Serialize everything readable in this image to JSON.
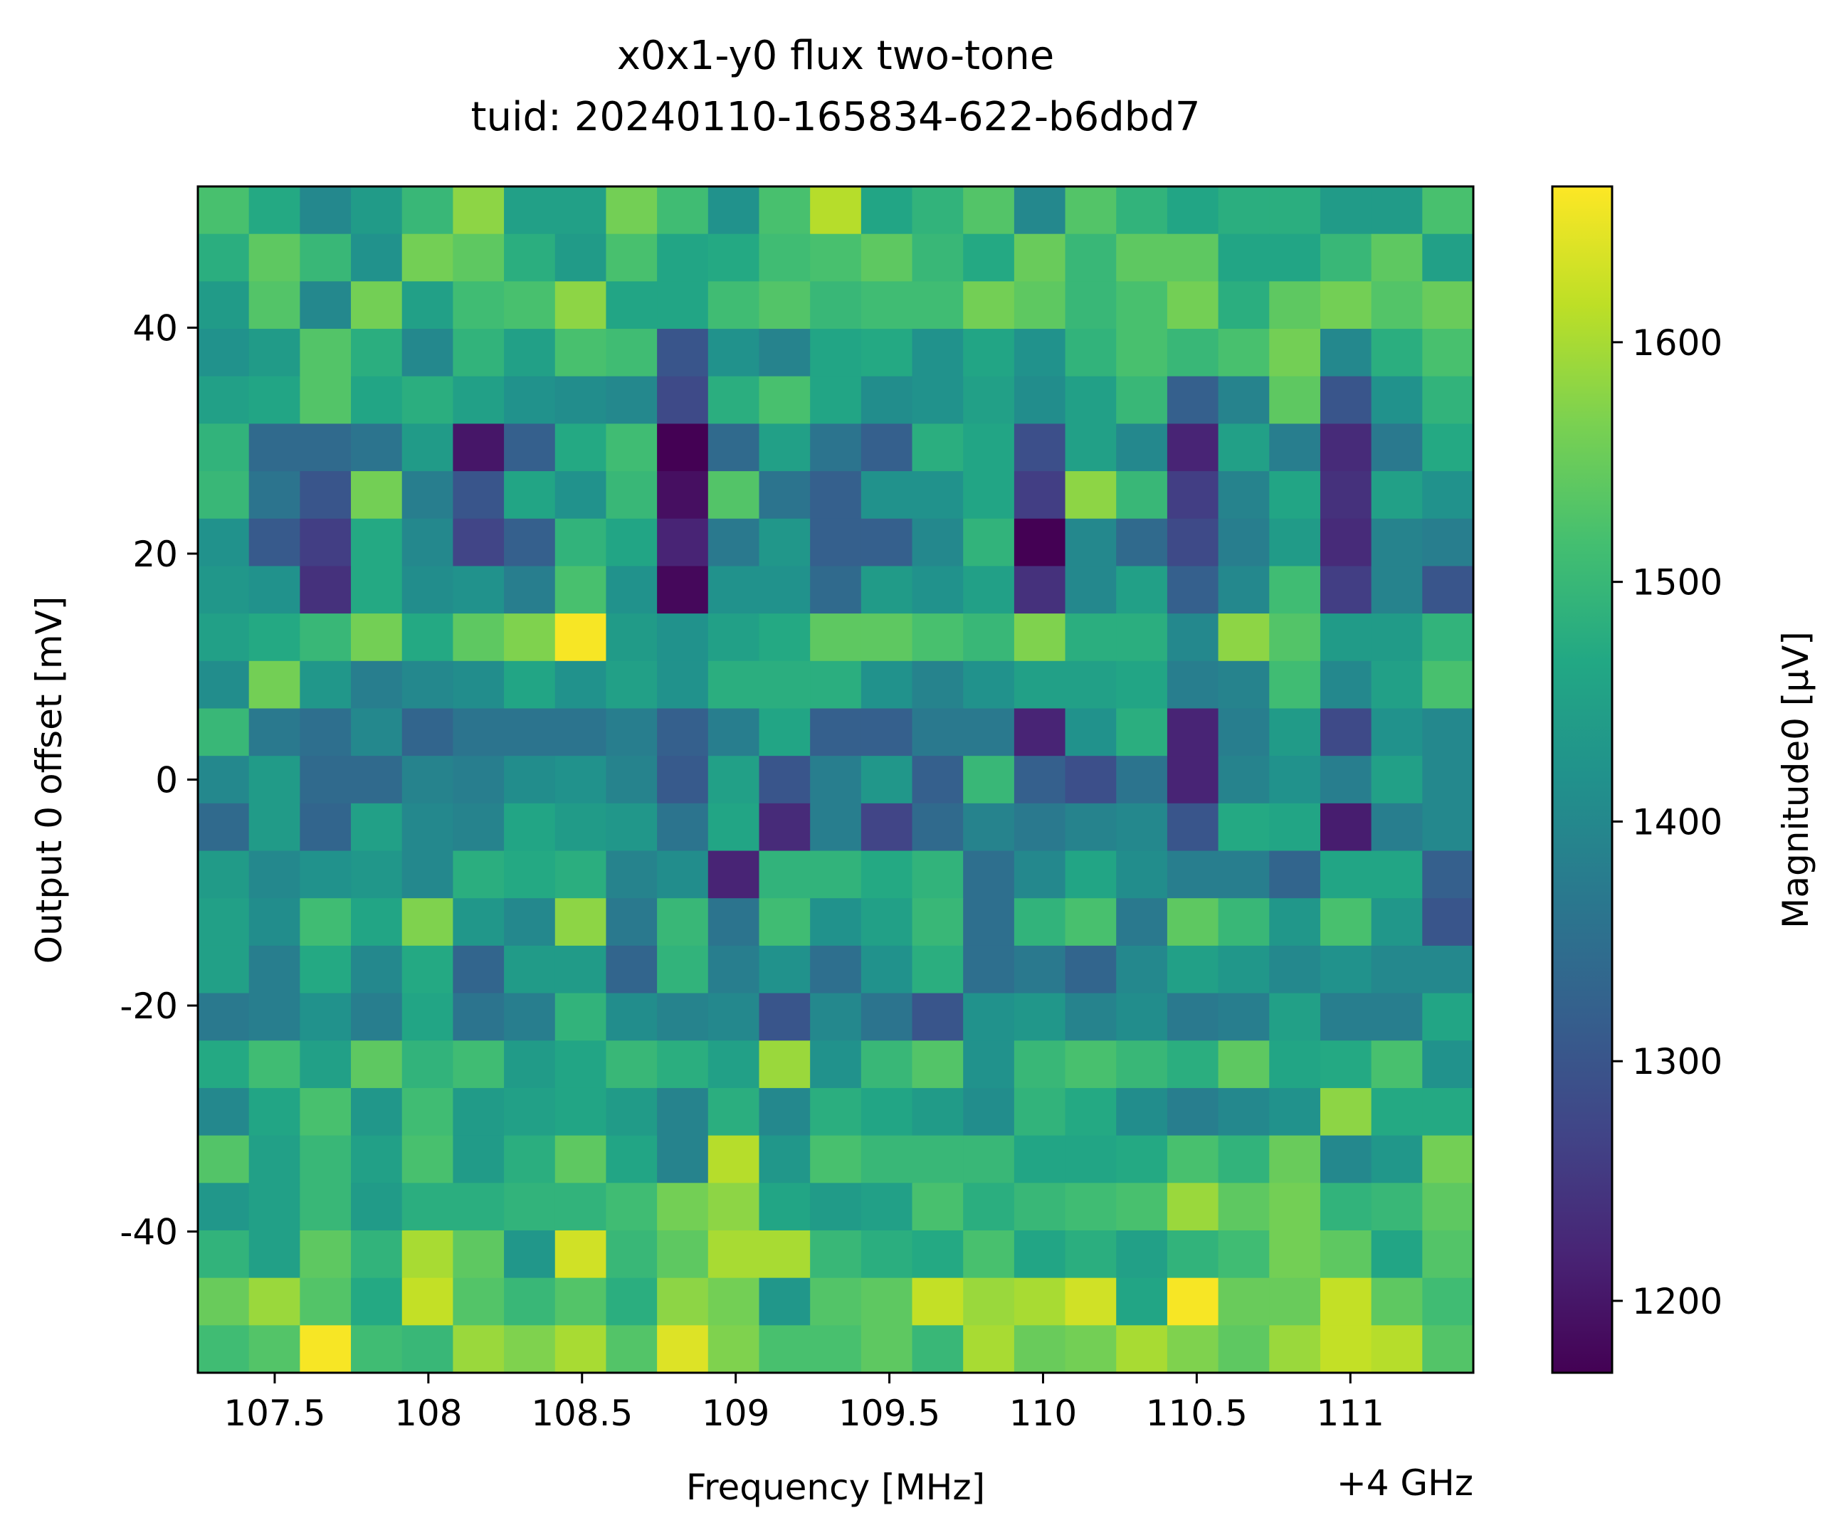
{
  "chart_data": {
    "type": "heatmap",
    "title_line1": "x0x1-y0 flux two-tone",
    "title_line2": "tuid: 20240110-165834-622-b6dbd7",
    "xlabel": "Frequency [MHz]",
    "x_offset_text": "+4 GHz",
    "ylabel": "Output 0 offset [mV]",
    "colorbar_label": "Magnitude0 [μV]",
    "colormap": "viridis",
    "xlim": [
      107.25,
      111.4
    ],
    "ylim": [
      -52.5,
      52.5
    ],
    "clim": [
      1170,
      1665
    ],
    "x_ticks": [
      107.5,
      108,
      108.5,
      109,
      109.5,
      110,
      110.5,
      111
    ],
    "x_tick_labels": [
      "107.5",
      "108",
      "108.5",
      "109",
      "109.5",
      "110",
      "110.5",
      "111"
    ],
    "y_ticks": [
      -40,
      -20,
      0,
      20,
      40
    ],
    "y_tick_labels": [
      "-40",
      "-20",
      "0",
      "20",
      "40"
    ],
    "cbar_ticks": [
      1200,
      1300,
      1400,
      1500,
      1600
    ],
    "cbar_tick_labels": [
      "1200",
      "1300",
      "1400",
      "1500",
      "1600"
    ],
    "x_values": [
      107.33,
      107.5,
      107.67,
      107.83,
      108.0,
      108.17,
      108.33,
      108.5,
      108.67,
      108.83,
      109.0,
      109.17,
      109.33,
      109.5,
      109.67,
      109.83,
      110.0,
      110.17,
      110.33,
      110.5,
      110.67,
      110.83,
      111.0,
      111.17,
      111.33
    ],
    "y_values": [
      -50,
      -45.83,
      -41.67,
      -37.5,
      -33.33,
      -29.17,
      -25,
      -20.83,
      -16.67,
      -12.5,
      -8.33,
      -4.17,
      0,
      4.17,
      8.33,
      12.5,
      16.67,
      20.83,
      25,
      29.17,
      33.33,
      37.5,
      41.67,
      45.83,
      50
    ],
    "z_rows_top_to_bottom": [
      [
        1520,
        1470,
        1400,
        1440,
        1500,
        1580,
        1450,
        1450,
        1560,
        1510,
        1420,
        1520,
        1610,
        1460,
        1490,
        1530,
        1400,
        1530,
        1490,
        1460,
        1480,
        1480,
        1440,
        1440,
        1520
      ],
      [
        1480,
        1540,
        1500,
        1420,
        1560,
        1540,
        1480,
        1440,
        1520,
        1460,
        1470,
        1510,
        1520,
        1540,
        1500,
        1470,
        1550,
        1500,
        1540,
        1540,
        1460,
        1460,
        1500,
        1540,
        1450
      ],
      [
        1440,
        1530,
        1400,
        1560,
        1450,
        1510,
        1520,
        1580,
        1460,
        1460,
        1510,
        1530,
        1500,
        1510,
        1510,
        1560,
        1540,
        1500,
        1520,
        1560,
        1480,
        1540,
        1560,
        1530,
        1550
      ],
      [
        1420,
        1440,
        1530,
        1480,
        1400,
        1490,
        1450,
        1520,
        1510,
        1300,
        1420,
        1390,
        1460,
        1470,
        1420,
        1460,
        1420,
        1490,
        1520,
        1500,
        1520,
        1560,
        1400,
        1480,
        1520
      ],
      [
        1450,
        1460,
        1530,
        1460,
        1480,
        1450,
        1420,
        1410,
        1400,
        1280,
        1480,
        1520,
        1460,
        1410,
        1420,
        1450,
        1410,
        1450,
        1500,
        1320,
        1390,
        1540,
        1300,
        1420,
        1490
      ],
      [
        1490,
        1340,
        1340,
        1360,
        1440,
        1200,
        1320,
        1470,
        1510,
        1170,
        1340,
        1450,
        1360,
        1320,
        1480,
        1460,
        1290,
        1450,
        1400,
        1220,
        1450,
        1380,
        1230,
        1370,
        1470
      ],
      [
        1500,
        1360,
        1300,
        1560,
        1380,
        1300,
        1460,
        1420,
        1500,
        1190,
        1530,
        1360,
        1320,
        1420,
        1420,
        1460,
        1260,
        1580,
        1500,
        1260,
        1390,
        1460,
        1240,
        1450,
        1420
      ],
      [
        1420,
        1310,
        1260,
        1470,
        1400,
        1270,
        1320,
        1490,
        1460,
        1220,
        1370,
        1430,
        1320,
        1320,
        1400,
        1490,
        1170,
        1400,
        1340,
        1280,
        1380,
        1440,
        1230,
        1390,
        1380
      ],
      [
        1430,
        1420,
        1240,
        1470,
        1410,
        1420,
        1380,
        1520,
        1420,
        1180,
        1420,
        1420,
        1340,
        1440,
        1420,
        1450,
        1240,
        1400,
        1450,
        1320,
        1400,
        1510,
        1260,
        1390,
        1300
      ],
      [
        1450,
        1470,
        1500,
        1560,
        1470,
        1540,
        1570,
        1660,
        1440,
        1420,
        1450,
        1470,
        1540,
        1540,
        1520,
        1500,
        1570,
        1480,
        1480,
        1400,
        1580,
        1530,
        1440,
        1440,
        1490
      ],
      [
        1410,
        1560,
        1430,
        1380,
        1400,
        1410,
        1460,
        1420,
        1450,
        1420,
        1480,
        1480,
        1480,
        1420,
        1390,
        1420,
        1450,
        1450,
        1460,
        1380,
        1390,
        1510,
        1400,
        1450,
        1520
      ],
      [
        1500,
        1370,
        1350,
        1400,
        1330,
        1360,
        1360,
        1360,
        1380,
        1320,
        1380,
        1460,
        1320,
        1320,
        1370,
        1370,
        1220,
        1420,
        1480,
        1220,
        1380,
        1440,
        1280,
        1420,
        1400
      ],
      [
        1400,
        1440,
        1340,
        1340,
        1390,
        1380,
        1410,
        1420,
        1390,
        1310,
        1450,
        1300,
        1380,
        1430,
        1320,
        1500,
        1320,
        1290,
        1360,
        1220,
        1390,
        1420,
        1380,
        1450,
        1400
      ],
      [
        1340,
        1440,
        1330,
        1450,
        1400,
        1390,
        1460,
        1440,
        1430,
        1360,
        1460,
        1230,
        1380,
        1270,
        1340,
        1390,
        1370,
        1390,
        1400,
        1300,
        1470,
        1460,
        1210,
        1380,
        1400
      ],
      [
        1440,
        1400,
        1420,
        1430,
        1400,
        1480,
        1470,
        1480,
        1390,
        1410,
        1220,
        1490,
        1490,
        1470,
        1490,
        1350,
        1400,
        1460,
        1410,
        1380,
        1380,
        1330,
        1460,
        1460,
        1320
      ],
      [
        1450,
        1410,
        1510,
        1460,
        1570,
        1430,
        1400,
        1580,
        1370,
        1500,
        1360,
        1510,
        1420,
        1450,
        1500,
        1350,
        1490,
        1520,
        1370,
        1540,
        1500,
        1430,
        1520,
        1430,
        1300
      ],
      [
        1450,
        1380,
        1470,
        1400,
        1470,
        1330,
        1440,
        1440,
        1330,
        1490,
        1380,
        1420,
        1350,
        1420,
        1480,
        1350,
        1370,
        1330,
        1400,
        1450,
        1430,
        1400,
        1420,
        1400,
        1400
      ],
      [
        1370,
        1380,
        1420,
        1380,
        1460,
        1360,
        1380,
        1490,
        1410,
        1390,
        1400,
        1300,
        1400,
        1360,
        1300,
        1420,
        1430,
        1390,
        1410,
        1370,
        1380,
        1450,
        1380,
        1380,
        1460
      ],
      [
        1470,
        1510,
        1450,
        1540,
        1490,
        1510,
        1440,
        1460,
        1500,
        1480,
        1450,
        1590,
        1420,
        1500,
        1530,
        1420,
        1500,
        1520,
        1500,
        1480,
        1540,
        1460,
        1470,
        1520,
        1420
      ],
      [
        1400,
        1460,
        1520,
        1430,
        1510,
        1440,
        1450,
        1460,
        1440,
        1390,
        1480,
        1400,
        1480,
        1460,
        1440,
        1410,
        1490,
        1470,
        1410,
        1380,
        1400,
        1420,
        1580,
        1470,
        1470
      ],
      [
        1530,
        1450,
        1500,
        1450,
        1520,
        1440,
        1480,
        1540,
        1460,
        1390,
        1610,
        1430,
        1520,
        1500,
        1500,
        1500,
        1460,
        1460,
        1470,
        1520,
        1490,
        1550,
        1400,
        1430,
        1560
      ],
      [
        1430,
        1450,
        1500,
        1440,
        1480,
        1480,
        1490,
        1490,
        1510,
        1560,
        1580,
        1460,
        1440,
        1450,
        1520,
        1480,
        1500,
        1510,
        1520,
        1590,
        1540,
        1560,
        1490,
        1500,
        1540
      ],
      [
        1490,
        1450,
        1540,
        1490,
        1600,
        1540,
        1430,
        1630,
        1500,
        1540,
        1600,
        1600,
        1500,
        1480,
        1470,
        1520,
        1460,
        1480,
        1450,
        1490,
        1510,
        1560,
        1540,
        1460,
        1530
      ],
      [
        1550,
        1590,
        1530,
        1470,
        1620,
        1530,
        1500,
        1530,
        1480,
        1580,
        1560,
        1430,
        1530,
        1540,
        1620,
        1590,
        1600,
        1630,
        1460,
        1660,
        1550,
        1550,
        1620,
        1540,
        1510
      ],
      [
        1510,
        1530,
        1660,
        1510,
        1500,
        1590,
        1570,
        1600,
        1530,
        1640,
        1570,
        1520,
        1520,
        1540,
        1500,
        1600,
        1550,
        1560,
        1600,
        1570,
        1540,
        1590,
        1620,
        1610,
        1530
      ]
    ]
  }
}
